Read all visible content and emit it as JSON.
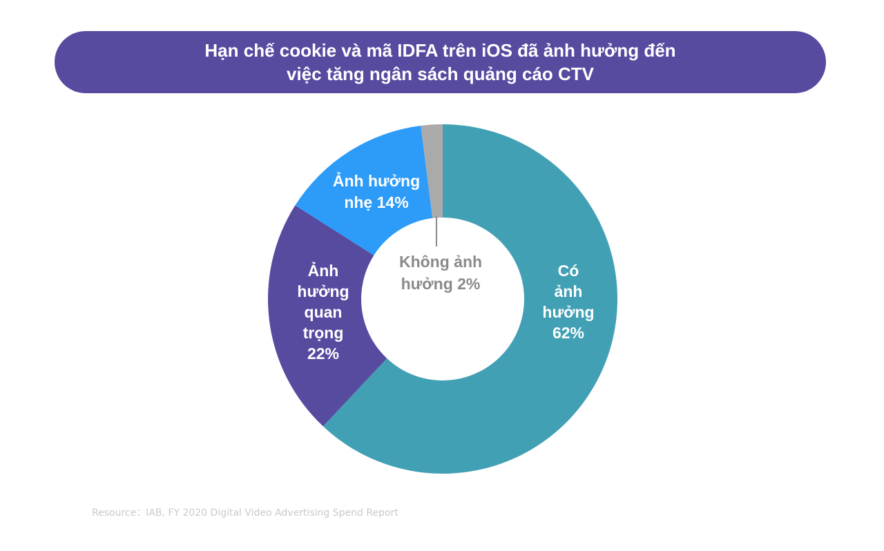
{
  "title": {
    "line1": "Hạn chế cookie và mã IDFA trên iOS đã ảnh hưởng đến",
    "line2": "việc tăng ngân sách quảng cáo CTV"
  },
  "colors": {
    "banner": "#574ba0",
    "title_text": "#ffffff",
    "source_text": "#c9c9c9"
  },
  "chart_data": {
    "type": "pie",
    "style": "donut",
    "start_angle_deg": 0,
    "direction": "clockwise",
    "slices": [
      {
        "lines": [
          "Có",
          "ảnh",
          "hưởng",
          "62%"
        ],
        "value": 62,
        "color": "#42a0b4",
        "label_color": "#ffffff",
        "label_position": "inside-right"
      },
      {
        "lines": [
          "Ảnh",
          "hưởng",
          "quan",
          "trọng",
          "22%"
        ],
        "value": 22,
        "color": "#574ba0",
        "label_color": "#ffffff",
        "label_position": "inside-left"
      },
      {
        "lines": [
          "Ảnh hưởng",
          "nhẹ 14%"
        ],
        "value": 14,
        "color": "#2d9bf8",
        "label_color": "#ffffff",
        "label_position": "inside-top-left"
      },
      {
        "lines": [
          "Không ảnh",
          "hưởng 2%"
        ],
        "value": 2,
        "color": "#aaaaaa",
        "label_color": "#8a8a8a",
        "label_position": "center-with-leader"
      }
    ]
  },
  "source": "Resource：IAB, FY 2020 Digital Video Advertising Spend Report"
}
